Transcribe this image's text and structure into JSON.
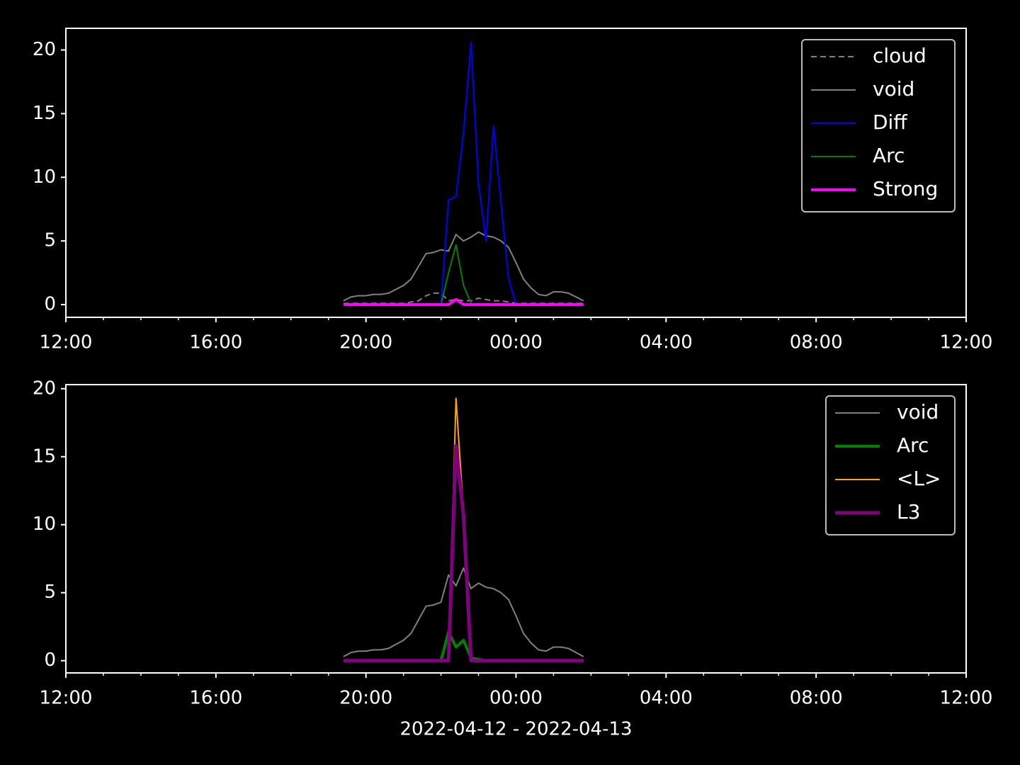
{
  "chart_data": [
    {
      "type": "line",
      "x": [
        19.4,
        19.6,
        19.8,
        20.0,
        20.2,
        20.4,
        20.6,
        20.8,
        21.0,
        21.2,
        21.4,
        21.6,
        21.8,
        22.0,
        22.2,
        22.4,
        22.6,
        22.8,
        23.0,
        23.2,
        23.4,
        23.6,
        23.8,
        24.0,
        24.2,
        24.4,
        24.6,
        24.8,
        25.0,
        25.2,
        25.4,
        25.6,
        25.8
      ],
      "series": [
        {
          "name": "cloud",
          "color": "#808080",
          "linestyle": "dashed",
          "linewidth": 2,
          "values": [
            0.1,
            0.1,
            0.1,
            0.1,
            0.1,
            0.1,
            0.1,
            0.1,
            0.1,
            0.2,
            0.3,
            0.7,
            0.9,
            0.9,
            0.3,
            0.4,
            0.3,
            0.3,
            0.5,
            0.4,
            0.3,
            0.3,
            0.2,
            0.1,
            0.1,
            0.1,
            0.1,
            0.1,
            0.1,
            0.1,
            0.1,
            0.1,
            0.1
          ]
        },
        {
          "name": "void",
          "color": "#808080",
          "linestyle": "solid",
          "linewidth": 2,
          "values": [
            0.3,
            0.6,
            0.7,
            0.7,
            0.8,
            0.8,
            0.9,
            1.2,
            1.5,
            2.0,
            3.0,
            4.0,
            4.1,
            4.3,
            4.2,
            5.5,
            5.0,
            5.3,
            5.7,
            5.4,
            5.3,
            5.0,
            4.5,
            3.3,
            2.0,
            1.3,
            0.8,
            0.7,
            1.0,
            1.0,
            0.9,
            0.6,
            0.3
          ]
        },
        {
          "name": "Diff",
          "color": "#0000ff",
          "linestyle": "solid",
          "linewidth": 2,
          "values": [
            0,
            0,
            0,
            0,
            0,
            0,
            0,
            0,
            0,
            0,
            0,
            0,
            0,
            0,
            8.2,
            8.5,
            13.5,
            20.6,
            9.5,
            5,
            14,
            8,
            2,
            0,
            0,
            0,
            0,
            0,
            0,
            0,
            0,
            0,
            0
          ]
        },
        {
          "name": "Arc",
          "color": "#008000",
          "linestyle": "solid",
          "linewidth": 2,
          "values": [
            0,
            0,
            0,
            0,
            0,
            0,
            0,
            0,
            0,
            0,
            0,
            0,
            0,
            0,
            2.5,
            4.7,
            1.5,
            0.1,
            0,
            0,
            0,
            0,
            0,
            0,
            0,
            0,
            0,
            0,
            0,
            0,
            0,
            0,
            0
          ]
        },
        {
          "name": "Strong",
          "color": "#ff00ff",
          "linestyle": "solid",
          "linewidth": 4,
          "values": [
            0,
            0,
            0,
            0,
            0,
            0,
            0,
            0,
            0,
            0,
            0,
            0,
            0,
            0,
            0,
            0.4,
            0,
            0,
            0,
            0,
            0,
            0,
            0,
            0,
            0,
            0,
            0,
            0,
            0,
            0,
            0,
            0,
            0
          ]
        }
      ],
      "xlim": [
        12,
        36
      ],
      "xticks": [
        {
          "value": 12,
          "label": "12:00"
        },
        {
          "value": 16,
          "label": "16:00"
        },
        {
          "value": 20,
          "label": "20:00"
        },
        {
          "value": 24,
          "label": "00:00"
        },
        {
          "value": 28,
          "label": "04:00"
        },
        {
          "value": 32,
          "label": "08:00"
        },
        {
          "value": 36,
          "label": "12:00"
        }
      ],
      "xminorticks": [
        13,
        14,
        15,
        17,
        18,
        19,
        21,
        22,
        23,
        25,
        26,
        27,
        29,
        30,
        31,
        33,
        34,
        35
      ],
      "ylim": [
        -1,
        21.7
      ],
      "yticks": [
        0,
        5,
        10,
        15,
        20
      ],
      "legend": "upper right"
    },
    {
      "type": "line",
      "x": [
        19.4,
        19.6,
        19.8,
        20.0,
        20.2,
        20.4,
        20.6,
        20.8,
        21.0,
        21.2,
        21.4,
        21.6,
        21.8,
        22.0,
        22.2,
        22.4,
        22.6,
        22.8,
        23.0,
        23.2,
        23.4,
        23.6,
        23.8,
        24.0,
        24.2,
        24.4,
        24.6,
        24.8,
        25.0,
        25.2,
        25.4,
        25.6,
        25.8
      ],
      "series": [
        {
          "name": "void",
          "color": "#808080",
          "linestyle": "solid",
          "linewidth": 2,
          "values": [
            0.3,
            0.6,
            0.7,
            0.7,
            0.8,
            0.8,
            0.9,
            1.2,
            1.5,
            2.0,
            3.0,
            4.0,
            4.1,
            4.3,
            6.3,
            5.5,
            6.8,
            5.3,
            5.7,
            5.4,
            5.3,
            5.0,
            4.5,
            3.3,
            2.0,
            1.3,
            0.8,
            0.7,
            1.0,
            1.0,
            0.9,
            0.6,
            0.3
          ]
        },
        {
          "name": "Arc",
          "color": "#008000",
          "linestyle": "solid",
          "linewidth": 4,
          "values": [
            0,
            0,
            0,
            0,
            0,
            0,
            0,
            0,
            0,
            0,
            0,
            0,
            0,
            0,
            2.1,
            1.0,
            1.5,
            0.2,
            0.1,
            0,
            0,
            0,
            0,
            0,
            0,
            0,
            0,
            0,
            0,
            0,
            0,
            0,
            0
          ]
        },
        {
          "name": "<L>",
          "color": "#ffa500",
          "linestyle": "solid",
          "linewidth": 2,
          "values": [
            0,
            0,
            0,
            0,
            0,
            0,
            0,
            0,
            0,
            0,
            0,
            0,
            0,
            0,
            0,
            19.3,
            10.9,
            0,
            0,
            0,
            0,
            0,
            0,
            0,
            0,
            0,
            0,
            0,
            0,
            0,
            0,
            0,
            0
          ]
        },
        {
          "name": "L3",
          "color": "#800080",
          "linestyle": "solid",
          "linewidth": 5,
          "values": [
            0,
            0,
            0,
            0,
            0,
            0,
            0,
            0,
            0,
            0,
            0,
            0,
            0,
            0,
            0,
            15.8,
            10.7,
            0,
            0,
            0,
            0,
            0,
            0,
            0,
            0,
            0,
            0,
            0,
            0,
            0,
            0,
            0,
            0
          ]
        }
      ],
      "xlim": [
        12,
        36
      ],
      "xticks": [
        {
          "value": 12,
          "label": "12:00"
        },
        {
          "value": 16,
          "label": "16:00"
        },
        {
          "value": 20,
          "label": "20:00"
        },
        {
          "value": 24,
          "label": "00:00"
        },
        {
          "value": 28,
          "label": "04:00"
        },
        {
          "value": 32,
          "label": "08:00"
        },
        {
          "value": 36,
          "label": "12:00"
        }
      ],
      "xminorticks": [
        13,
        14,
        15,
        17,
        18,
        19,
        21,
        22,
        23,
        25,
        26,
        27,
        29,
        30,
        31,
        33,
        34,
        35
      ],
      "ylim": [
        -0.9,
        20.3
      ],
      "yticks": [
        0,
        5,
        10,
        15,
        20
      ],
      "xlabel": "2022-04-12 - 2022-04-13",
      "legend": "upper right"
    }
  ]
}
